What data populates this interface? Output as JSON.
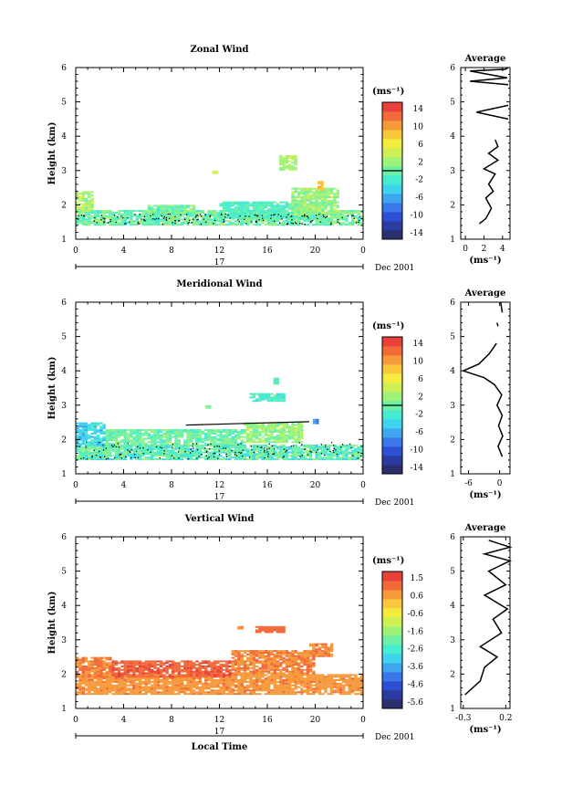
{
  "time_ticks": [
    "0",
    "4",
    "8",
    "12",
    "16",
    "20",
    "0"
  ],
  "height_ticks": [
    "1",
    "2",
    "3",
    "4",
    "5",
    "6"
  ],
  "day_label": "17",
  "month_label": "Dec 2001",
  "height_label": "Height (km)",
  "unit_label": "(ms⁻¹)",
  "profile_title": "Average",
  "xlabel": "Local Time",
  "colors": {
    "scale": [
      "#2b2f6e",
      "#2b3ba0",
      "#2d4fd4",
      "#3a77e8",
      "#3ea6ee",
      "#3fd3ee",
      "#45ecd0",
      "#6ef0a6",
      "#9ef27a",
      "#cdf055",
      "#f3ec3f",
      "#f8c73c",
      "#f6993b",
      "#f26a3a",
      "#e9403a"
    ]
  },
  "chart_data": [
    {
      "type": "heatmap",
      "title": "Zonal Wind",
      "ylabel": "Height (km)",
      "x_range_hours": [
        0,
        24
      ],
      "ylim": [
        1,
        6
      ],
      "colorbar": {
        "ticks": [
          "14",
          "10",
          "6",
          "2",
          "-2",
          "-6",
          "-10",
          "-14"
        ],
        "range": [
          -16,
          16
        ]
      },
      "profile": {
        "title": "Average",
        "xlabel": "(ms⁻¹)",
        "xlim": [
          -0.5,
          4.8
        ],
        "xticks": [
          "0",
          "2",
          "4"
        ],
        "xtick_values": [
          0,
          2,
          4
        ],
        "segments": [
          [
            [
              1.5,
              1.45
            ],
            [
              2.2,
              1.6
            ],
            [
              2.8,
              1.9
            ],
            [
              2.2,
              2.2
            ],
            [
              3.0,
              2.4
            ],
            [
              2.5,
              2.6
            ],
            [
              3.2,
              2.9
            ],
            [
              2.0,
              3.05
            ],
            [
              3.5,
              3.3
            ],
            [
              2.5,
              3.5
            ],
            [
              3.5,
              3.7
            ],
            [
              3.2,
              3.9
            ]
          ],
          [
            [
              4.6,
              5.5
            ],
            [
              0.5,
              5.6
            ],
            [
              4.5,
              5.7
            ],
            [
              0.5,
              5.9
            ],
            [
              4.3,
              5.95
            ],
            [
              4.6,
              6.0
            ]
          ],
          [
            [
              4.6,
              4.5
            ],
            [
              1.2,
              4.7
            ],
            [
              4.6,
              4.9
            ]
          ]
        ]
      },
      "patches": [
        {
          "t": [
            0,
            24
          ],
          "h": [
            1.4,
            1.85
          ],
          "v": [
            -3,
            3
          ]
        },
        {
          "t": [
            0,
            1.5
          ],
          "h": [
            1.8,
            2.4
          ],
          "v": [
            0,
            6
          ]
        },
        {
          "t": [
            6,
            10
          ],
          "h": [
            1.7,
            2.0
          ],
          "v": [
            -2,
            2
          ]
        },
        {
          "t": [
            12,
            19
          ],
          "h": [
            1.6,
            2.1
          ],
          "v": [
            -3,
            0
          ]
        },
        {
          "t": [
            18,
            22
          ],
          "h": [
            1.7,
            2.5
          ],
          "v": [
            0,
            4
          ]
        },
        {
          "t": [
            17,
            18.5
          ],
          "h": [
            3.0,
            3.45
          ],
          "v": [
            1,
            4
          ]
        },
        {
          "t": [
            20.2,
            20.6
          ],
          "h": [
            2.4,
            2.7
          ],
          "v": [
            8,
            10
          ]
        },
        {
          "t": [
            11.4,
            11.7
          ],
          "h": [
            2.9,
            3.0
          ],
          "v": [
            4,
            6
          ]
        }
      ]
    },
    {
      "type": "heatmap",
      "title": "Meridional Wind",
      "ylabel": "Height (km)",
      "x_range_hours": [
        0,
        24
      ],
      "ylim": [
        1,
        6
      ],
      "colorbar": {
        "ticks": [
          "14",
          "10",
          "6",
          "2",
          "-2",
          "-6",
          "-10",
          "-14"
        ],
        "range": [
          -16,
          16
        ]
      },
      "profile": {
        "title": "Average",
        "xlabel": "(ms⁻¹)",
        "xlim": [
          -7.5,
          2
        ],
        "xticks": [
          "-6",
          "0"
        ],
        "xtick_values": [
          -6,
          0
        ],
        "segments": [
          [
            [
              0.5,
              1.5
            ],
            [
              -0.3,
              1.8
            ],
            [
              0.6,
              2.1
            ],
            [
              -0.2,
              2.4
            ],
            [
              0.5,
              2.7
            ],
            [
              -0.5,
              3.0
            ],
            [
              0.4,
              3.3
            ],
            [
              -1.0,
              3.6
            ],
            [
              -3.0,
              3.8
            ],
            [
              -7.0,
              4.0
            ],
            [
              -4.0,
              4.2
            ],
            [
              -2.0,
              4.5
            ],
            [
              -0.6,
              4.8
            ]
          ],
          [
            [
              -0.3,
              5.3
            ],
            [
              -0.5,
              5.4
            ]
          ],
          [
            [
              0.5,
              5.7
            ],
            [
              0.2,
              6.0
            ]
          ]
        ]
      },
      "patches": [
        {
          "t": [
            0,
            24
          ],
          "h": [
            1.4,
            1.85
          ],
          "v": [
            -4,
            2
          ]
        },
        {
          "t": [
            0,
            2.5
          ],
          "h": [
            1.8,
            2.5
          ],
          "v": [
            -6,
            -2
          ]
        },
        {
          "t": [
            2.5,
            14
          ],
          "h": [
            1.8,
            2.3
          ],
          "v": [
            -2,
            2
          ]
        },
        {
          "t": [
            14,
            19
          ],
          "h": [
            1.9,
            2.5
          ],
          "v": [
            0,
            4
          ]
        },
        {
          "t": [
            14.5,
            17.5
          ],
          "h": [
            3.1,
            3.35
          ],
          "v": [
            -4,
            0
          ]
        },
        {
          "t": [
            16.5,
            16.8
          ],
          "h": [
            3.6,
            3.8
          ],
          "v": [
            -2,
            2
          ]
        },
        {
          "t": [
            10.8,
            11.2
          ],
          "h": [
            2.9,
            3.0
          ],
          "v": [
            -2,
            2
          ]
        },
        {
          "t": [
            19.8,
            20.2
          ],
          "h": [
            2.45,
            2.6
          ],
          "v": [
            -8,
            -6
          ]
        }
      ]
    },
    {
      "type": "heatmap",
      "title": "Vertical Wind",
      "ylabel": "Height (km)",
      "xlabel": "Local Time",
      "x_range_hours": [
        0,
        24
      ],
      "ylim": [
        1,
        6
      ],
      "colorbar": {
        "ticks": [
          "1.5",
          "0.6",
          "-0.6",
          "-1.6",
          "-2.6",
          "-3.6",
          "-4.6",
          "-5.6"
        ],
        "range": [
          -6.1,
          2.0
        ]
      },
      "profile": {
        "title": "Average",
        "xlabel": "(ms⁻¹)",
        "xlim": [
          -0.33,
          0.25
        ],
        "xticks": [
          "-0.3",
          "0.2"
        ],
        "xtick_values": [
          -0.3,
          0.2
        ],
        "segments": [
          [
            [
              -0.28,
              1.4
            ],
            [
              -0.1,
              1.8
            ],
            [
              -0.05,
              2.2
            ],
            [
              0.1,
              2.5
            ],
            [
              -0.1,
              2.8
            ],
            [
              0.15,
              3.2
            ],
            [
              0.05,
              3.6
            ],
            [
              0.22,
              3.9
            ],
            [
              -0.05,
              4.3
            ],
            [
              0.2,
              4.6
            ],
            [
              0.0,
              5.0
            ],
            [
              0.25,
              5.3
            ],
            [
              -0.05,
              5.5
            ],
            [
              0.25,
              5.7
            ],
            [
              0.0,
              5.9
            ]
          ]
        ]
      },
      "patches": [
        {
          "t": [
            0,
            24
          ],
          "h": [
            1.4,
            2.0
          ],
          "v": [
            0.4,
            1.0
          ]
        },
        {
          "t": [
            0,
            3
          ],
          "h": [
            1.9,
            2.5
          ],
          "v": [
            0.6,
            1.2
          ]
        },
        {
          "t": [
            3,
            13
          ],
          "h": [
            1.9,
            2.4
          ],
          "v": [
            1.0,
            1.6
          ]
        },
        {
          "t": [
            13,
            20
          ],
          "h": [
            2.0,
            2.7
          ],
          "v": [
            0.6,
            1.2
          ]
        },
        {
          "t": [
            19.5,
            21.5
          ],
          "h": [
            2.5,
            2.9
          ],
          "v": [
            0.6,
            1.1
          ]
        },
        {
          "t": [
            15,
            17.5
          ],
          "h": [
            3.2,
            3.4
          ],
          "v": [
            1.0,
            1.3
          ]
        },
        {
          "t": [
            13.5,
            14
          ],
          "h": [
            3.3,
            3.4
          ],
          "v": [
            0.8,
            1.0
          ]
        }
      ]
    }
  ]
}
